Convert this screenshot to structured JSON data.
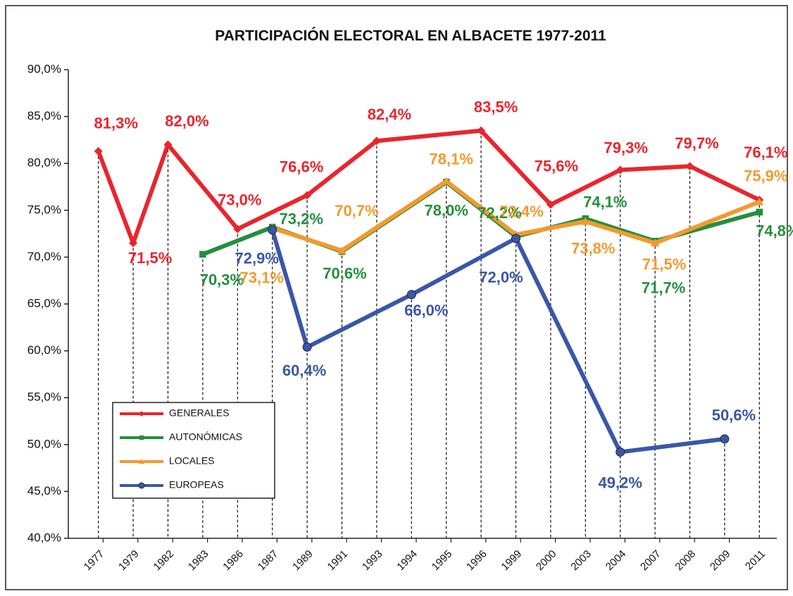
{
  "chart_data": {
    "type": "line",
    "title": "PARTICIPACIÓN ELECTORAL EN ALBACETE 1977-2011",
    "categories": [
      "1977",
      "1979",
      "1982",
      "1983",
      "1986",
      "1987",
      "1989",
      "1991",
      "1993",
      "1994",
      "1995",
      "1996",
      "1999",
      "2000",
      "2003",
      "2004",
      "2007",
      "2008",
      "2009",
      "2011"
    ],
    "ylim": [
      40,
      90
    ],
    "yticks": [
      {
        "value": 40,
        "label": "40,0%"
      },
      {
        "value": 45,
        "label": "45,0%"
      },
      {
        "value": 50,
        "label": "50,0%"
      },
      {
        "value": 55,
        "label": "55,0%"
      },
      {
        "value": 60,
        "label": "60,0%"
      },
      {
        "value": 65,
        "label": "65,0%"
      },
      {
        "value": 70,
        "label": "70,0%"
      },
      {
        "value": 75,
        "label": "75,0%"
      },
      {
        "value": 80,
        "label": "80,0%"
      },
      {
        "value": 85,
        "label": "85,0%"
      },
      {
        "value": 90,
        "label": "90,0%"
      }
    ],
    "series": [
      {
        "name": "GENERALES",
        "color": "#e8262d",
        "marker": "diamond",
        "x": [
          "1977",
          "1979",
          "1982",
          "1986",
          "1989",
          "1993",
          "1996",
          "2000",
          "2004",
          "2008",
          "2011"
        ],
        "values": [
          81.3,
          71.5,
          82.0,
          73.0,
          76.6,
          82.4,
          83.5,
          75.6,
          79.3,
          79.7,
          76.1
        ],
        "value_labels": [
          "81,3%",
          "71,5%",
          "82,0%",
          "73,0%",
          "76,6%",
          "82,4%",
          "83,5%",
          "75,6%",
          "79,3%",
          "79,7%",
          "76,1%"
        ]
      },
      {
        "name": "AUTONÓMICAS",
        "color": "#248f3d",
        "marker": "square",
        "x": [
          "1983",
          "1987",
          "1991",
          "1995",
          "1999",
          "2003",
          "2007",
          "2011"
        ],
        "values": [
          70.3,
          73.2,
          70.6,
          78.0,
          72.2,
          74.1,
          71.7,
          74.8
        ],
        "value_labels": [
          "70,3%",
          "73,2%",
          "70,6%",
          "78,0%",
          "72,2%",
          "74,1%",
          "71,7%",
          "74,8%"
        ]
      },
      {
        "name": "LOCALES",
        "color": "#f39a2e",
        "marker": "triangle",
        "x": [
          "1987",
          "1991",
          "1995",
          "1999",
          "2003",
          "2007",
          "2011"
        ],
        "values": [
          73.1,
          70.7,
          78.1,
          72.4,
          73.8,
          71.5,
          75.9
        ],
        "value_labels": [
          "73,1%",
          "70,7%",
          "78,1%",
          "72,4%",
          "73,8%",
          "71,5%",
          "75,9%"
        ]
      },
      {
        "name": "EUROPEAS",
        "color": "#3a57a7",
        "marker": "circle",
        "x": [
          "1987",
          "1989",
          "1994",
          "1999",
          "2004",
          "2009"
        ],
        "values": [
          72.9,
          60.4,
          66.0,
          72.0,
          49.2,
          50.6
        ],
        "value_labels": [
          "72,9%",
          "60,4%",
          "66,0%",
          "72,0%",
          "49,2%",
          "50,6%"
        ]
      }
    ],
    "legend": "lower left"
  }
}
